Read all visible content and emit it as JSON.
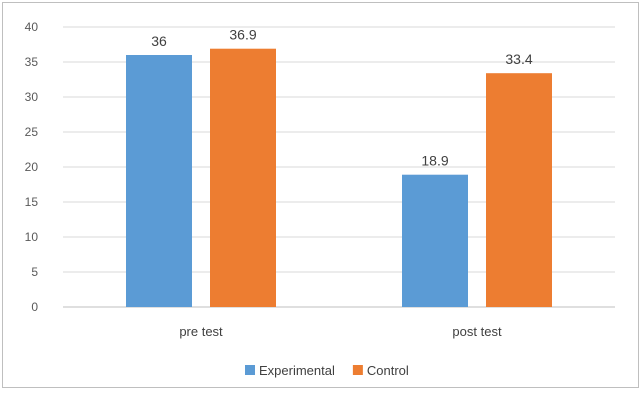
{
  "chart_data": {
    "type": "bar",
    "title": "",
    "xlabel": "",
    "ylabel": "",
    "categories": [
      "pre test",
      "post test"
    ],
    "series": [
      {
        "name": "Experimental",
        "values": [
          36,
          18.9
        ],
        "labels": [
          "36",
          "18.9"
        ],
        "color": "#5b9bd5"
      },
      {
        "name": "Control",
        "values": [
          36.9,
          33.4
        ],
        "labels": [
          "36.9",
          "33.4"
        ],
        "color": "#ed7d31"
      }
    ],
    "ylim": [
      0,
      40
    ],
    "yticks": [
      0,
      5,
      10,
      15,
      20,
      25,
      30,
      35,
      40
    ],
    "ytick_labels": [
      "0",
      "5",
      "10",
      "15",
      "20",
      "25",
      "30",
      "35",
      "40"
    ],
    "grid": true,
    "legend_position": "bottom"
  }
}
